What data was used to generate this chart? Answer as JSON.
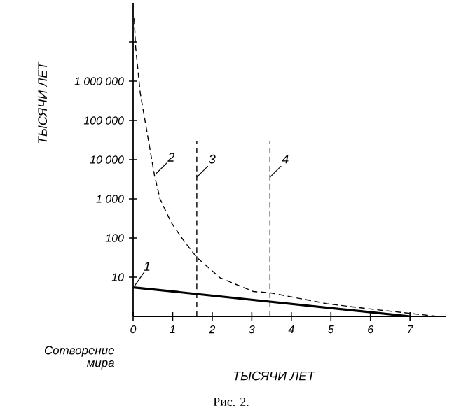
{
  "chart_data": {
    "type": "line",
    "xlabel": "ТЫСЯЧИ ЛЕТ",
    "ylabel": "ТЫСЯЧИ ЛЕТ",
    "log": "y",
    "xlim": [
      0,
      7.9
    ],
    "ylim": [
      1,
      100000000
    ],
    "xticks": [
      0,
      1,
      2,
      3,
      4,
      5,
      6,
      7
    ],
    "yticks": [
      {
        "value": 10,
        "label": "10"
      },
      {
        "value": 100,
        "label": "100"
      },
      {
        "value": 1000,
        "label": "1 000"
      },
      {
        "value": 10000,
        "label": "10 000"
      },
      {
        "value": 100000,
        "label": "100 000"
      },
      {
        "value": 1000000,
        "label": "1 000 000"
      },
      {
        "value": 10000000,
        "label": null
      }
    ],
    "grid": false,
    "legend": false,
    "series": [
      {
        "name": "1",
        "color": "#000000",
        "line_style": "solid",
        "x": [
          0,
          7
        ],
        "values": [
          5.5,
          1
        ]
      },
      {
        "name": "2",
        "color": "#000000",
        "line_style": "dashed",
        "x": [
          0.03,
          0.06,
          0.18,
          0.54,
          0.68,
          0.96,
          1.3,
          1.61,
          2.2,
          3.04,
          3.46,
          4.9,
          6.1,
          7.7
        ],
        "values": [
          40000000,
          8000000,
          500000,
          4000,
          1000,
          250,
          80,
          32,
          9.6,
          4.3,
          4,
          2.1,
          1.5,
          1
        ]
      },
      {
        "name": "3",
        "color": "#000000",
        "line_style": "dashed",
        "x": [
          1.61,
          1.61
        ],
        "values": [
          1,
          30000
        ]
      },
      {
        "name": "4",
        "color": "#000000",
        "line_style": "dashed",
        "x": [
          3.46,
          3.46
        ],
        "values": [
          1,
          30000
        ]
      }
    ],
    "annotations": [
      "Сотворение мира",
      "Рис. 2."
    ]
  }
}
